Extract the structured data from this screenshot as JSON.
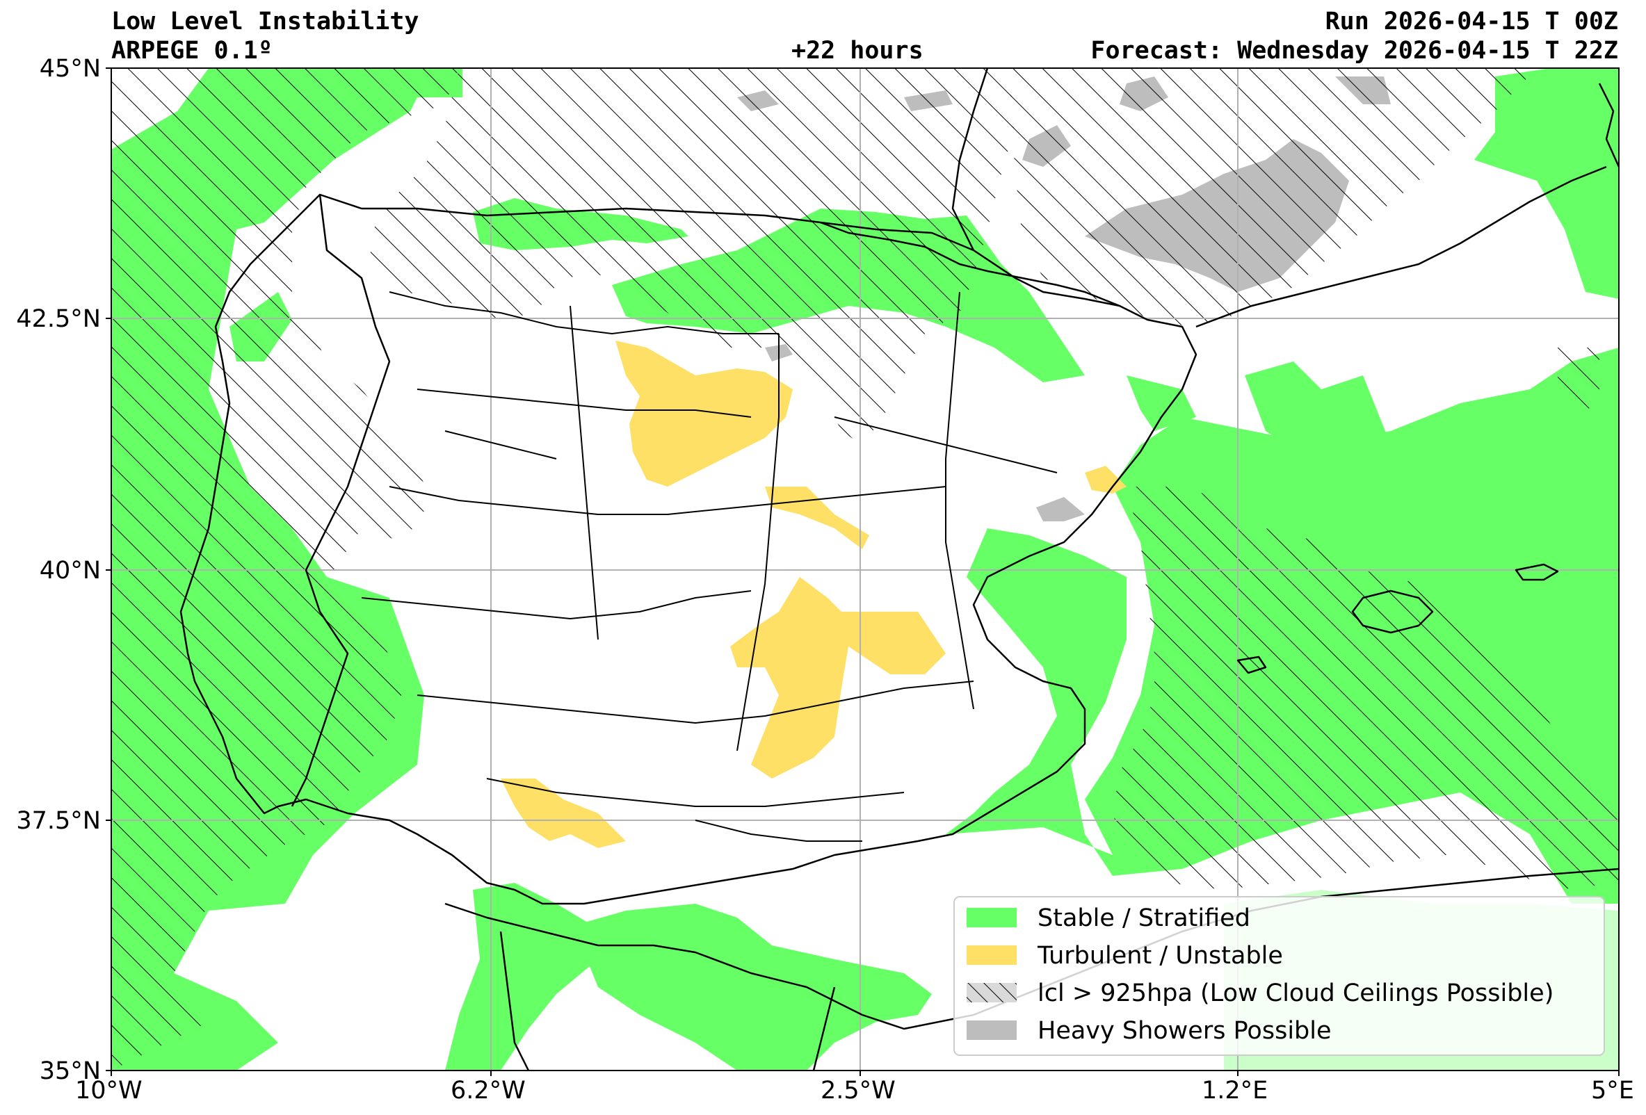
{
  "header": {
    "title": "Low Level Instability",
    "model": "ARPEGE 0.1º",
    "lead": "+22 hours",
    "run": "Run 2026-04-15 T 00Z",
    "forecast": "Forecast: Wednesday 2026-04-15 T 22Z"
  },
  "axes": {
    "lat_labels": [
      "45°N",
      "42.5°N",
      "40°N",
      "37.5°N",
      "35°N"
    ],
    "lon_labels": [
      "10°W",
      "6.2°W",
      "2.5°W",
      "1.2°E",
      "5°E"
    ]
  },
  "legend": {
    "placement": "bottom-right",
    "items": [
      {
        "label": "Stable / Stratified",
        "color": "#66ff66",
        "style": "solid"
      },
      {
        "label": "Turbulent / Unstable",
        "color": "#ffe066",
        "style": "solid"
      },
      {
        "label": "lcl > 925hpa (Low Cloud Ceilings Possible)",
        "color": "#d9d9d9",
        "style": "hatched"
      },
      {
        "label": "Heavy Showers Possible",
        "color": "#bdbdbd",
        "style": "solid"
      }
    ]
  },
  "colors": {
    "stable": "#66ff66",
    "unstable": "#ffe066",
    "showers": "#bdbdbd",
    "grid": "#b0b0b0",
    "borders": "#000000"
  }
}
